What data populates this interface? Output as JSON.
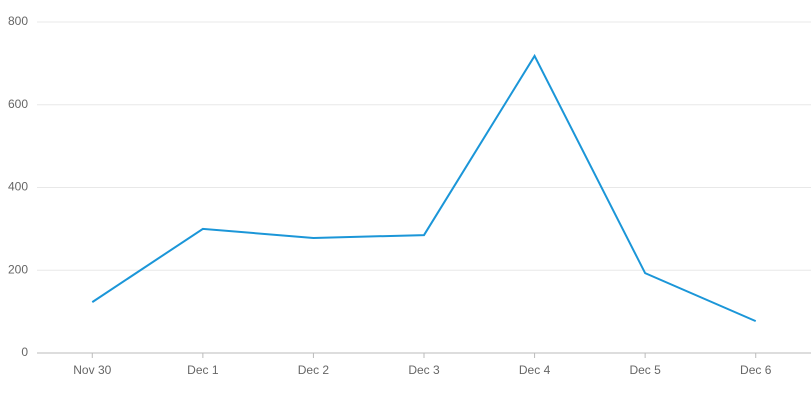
{
  "chart_data": {
    "type": "line",
    "categories": [
      "Nov 30",
      "Dec 1",
      "Dec 2",
      "Dec 3",
      "Dec 4",
      "Dec 5",
      "Dec 6"
    ],
    "values": [
      123,
      300,
      278,
      285,
      718,
      193,
      77
    ],
    "color": "#1b96d8",
    "ylim": [
      0,
      800
    ],
    "yticks": [
      0,
      200,
      400,
      600,
      800
    ],
    "grid": true
  }
}
